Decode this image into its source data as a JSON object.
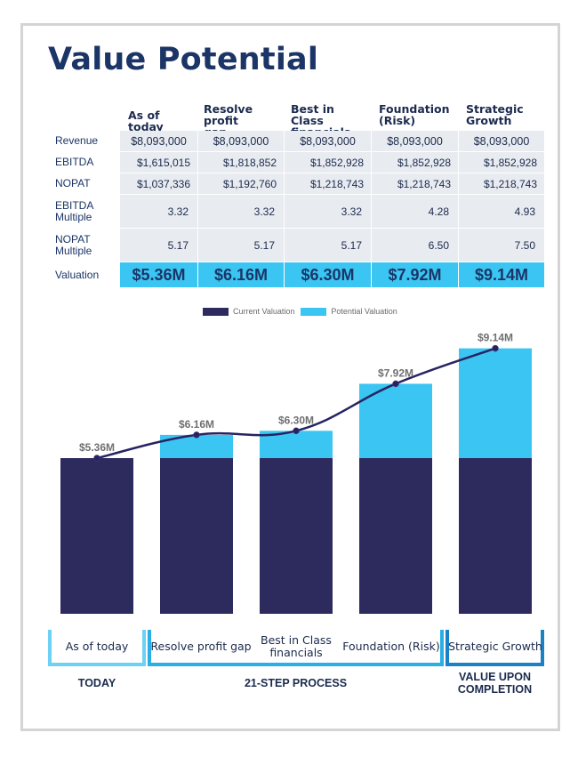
{
  "title": "Value Potential",
  "table": {
    "columns": [
      "As of today",
      "Resolve profit gap",
      "Best in Class financials",
      "Foundation (Risk)",
      "Strategic Growth"
    ],
    "column_lines": [
      [
        "As of today"
      ],
      [
        "Resolve",
        "profit gap"
      ],
      [
        "Best in Class",
        "financials"
      ],
      [
        "Foundation",
        "(Risk)"
      ],
      [
        "Strategic",
        "Growth"
      ]
    ],
    "rows": [
      {
        "label": "Revenue",
        "label_lines": [
          "Revenue"
        ],
        "values": [
          "$8,093,000",
          "$8,093,000",
          "$8,093,000",
          "$8,093,000",
          "$8,093,000"
        ]
      },
      {
        "label": "EBITDA",
        "label_lines": [
          "EBITDA"
        ],
        "values": [
          "$1,615,015",
          "$1,818,852",
          "$1,852,928",
          "$1,852,928",
          "$1,852,928"
        ]
      },
      {
        "label": "NOPAT",
        "label_lines": [
          "NOPAT"
        ],
        "values": [
          "$1,037,336",
          "$1,192,760",
          "$1,218,743",
          "$1,218,743",
          "$1,218,743"
        ]
      },
      {
        "label": "EBITDA Multiple",
        "label_lines": [
          "EBITDA",
          "Multiple"
        ],
        "values": [
          "3.32",
          "3.32",
          "3.32",
          "4.28",
          "4.93"
        ]
      },
      {
        "label": "NOPAT Multiple",
        "label_lines": [
          "NOPAT",
          "Multiple"
        ],
        "values": [
          "5.17",
          "5.17",
          "5.17",
          "6.50",
          "7.50"
        ]
      },
      {
        "label": "Valuation",
        "label_lines": [
          "Valuation"
        ],
        "values": [
          "$5.36M",
          "$6.16M",
          "$6.30M",
          "$7.92M",
          "$9.14M"
        ]
      }
    ]
  },
  "colors": {
    "title": "#1b3566",
    "current": "#2d2a5e",
    "potential": "#3bc5f2",
    "line": "#262463",
    "cell_bg": "#e8ebef",
    "bracket_today": "#6dd0f5",
    "bracket_process": "#29aee6",
    "bracket_completion": "#1a82c4"
  },
  "chart_data": {
    "type": "bar",
    "stacked": true,
    "categories": [
      "As of today",
      "Resolve profit gap",
      "Best in Class financials",
      "Foundation (Risk)",
      "Strategic Growth"
    ],
    "series": [
      {
        "name": "Current Valuation",
        "values": [
          5.36,
          5.36,
          5.36,
          5.36,
          5.36
        ]
      },
      {
        "name": "Potential Valuation",
        "values": [
          0,
          0.8,
          0.94,
          2.56,
          3.78
        ]
      }
    ],
    "line_series": {
      "name": "Valuation",
      "values": [
        5.36,
        6.16,
        6.3,
        7.92,
        9.14
      ]
    },
    "data_labels": [
      "$5.36M",
      "$6.16M",
      "$6.30M",
      "$7.92M",
      "$9.14M"
    ],
    "legend": [
      "Current Valuation",
      "Potential Valuation"
    ],
    "legend_position": "top-center",
    "ylim": [
      0,
      9.5
    ],
    "unit": "$M",
    "grid": false
  },
  "brackets": [
    {
      "phase": "TODAY",
      "phase_lines": [
        "TODAY"
      ],
      "items": [
        [
          "As of today"
        ]
      ]
    },
    {
      "phase": "21-STEP PROCESS",
      "phase_lines": [
        "21-STEP PROCESS"
      ],
      "items": [
        [
          "Resolve profit gap"
        ],
        [
          "Best in Class",
          "financials"
        ],
        [
          "Foundation (Risk)"
        ]
      ]
    },
    {
      "phase": "VALUE UPON COMPLETION",
      "phase_lines": [
        "VALUE UPON",
        "COMPLETION"
      ],
      "items": [
        [
          "Strategic Growth"
        ]
      ]
    }
  ]
}
